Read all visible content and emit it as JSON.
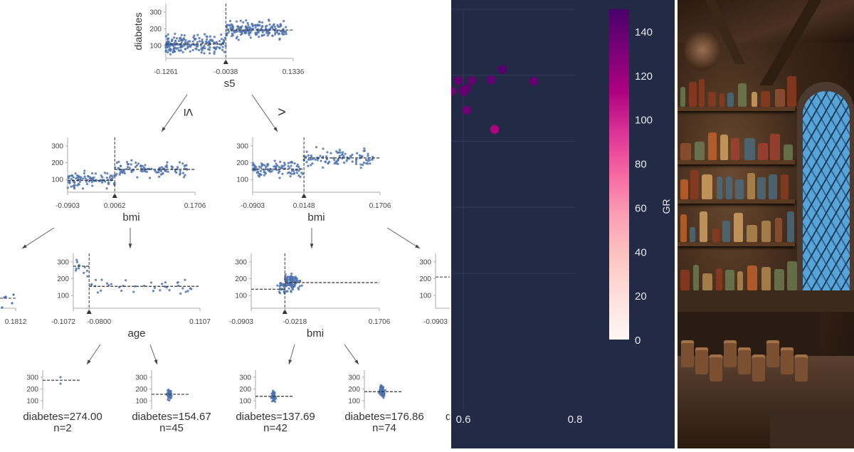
{
  "chart_data": [
    {
      "type": "scatter",
      "subtype": "decision-tree-regression",
      "ylabel": "diabetes",
      "ylim": [
        25,
        350
      ],
      "yticks": [
        "100",
        "200",
        "300"
      ],
      "point_color": "#4c72b0",
      "nodes": {
        "root": {
          "feature": "s5",
          "xticks": [
            "-0.1261",
            "-0.0038",
            "0.1336"
          ],
          "xlim": [
            -0.1261,
            0.1336
          ],
          "split": -0.0038,
          "left_mean": 110,
          "right_mean": 193
        },
        "l": {
          "feature": "bmi",
          "xticks": [
            "-0.0903",
            "0.0062",
            "0.1706"
          ],
          "xlim": [
            -0.0903,
            0.1706
          ],
          "split": 0.0062,
          "left_mean": 95,
          "right_mean": 160
        },
        "r": {
          "feature": "bmi",
          "xticks": [
            "-0.0903",
            "0.0148",
            "0.1706"
          ],
          "xlim": [
            -0.0903,
            0.1706
          ],
          "split": 0.0148,
          "left_mean": 162,
          "right_mean": 228
        },
        "ll": {
          "xticks": [
            "0.1812"
          ],
          "mean": 85
        },
        "lr": {
          "feature": "age",
          "xticks": [
            "-0.1072",
            "-0.0800",
            "0.1107"
          ],
          "xlim": [
            -0.1072,
            0.1107
          ],
          "split": -0.08,
          "left_mean": 274,
          "right_mean": 154.67
        },
        "rl": {
          "feature": "bmi",
          "xticks": [
            "-0.0903",
            "-0.0218",
            "0.1706"
          ],
          "xlim": [
            -0.0903,
            0.1706
          ],
          "split": -0.0218,
          "left_mean": 137.69,
          "right_mean": 176.86
        },
        "rr": {
          "xticks": [
            "-0.0903"
          ],
          "mean": 210
        }
      },
      "edge_labels": {
        "left": "≤",
        "right": ">"
      },
      "leaves": [
        {
          "label": "diabetes=274.00",
          "n_label": "n=2",
          "mean": 274.0,
          "n": 2
        },
        {
          "label": "diabetes=154.67",
          "n_label": "n=45",
          "mean": 154.67,
          "n": 45
        },
        {
          "label": "diabetes=137.69",
          "n_label": "n=42",
          "mean": 137.69,
          "n": 42
        },
        {
          "label": "diabetes=176.86",
          "n_label": "n=74",
          "mean": 176.86,
          "n": 74
        }
      ],
      "partial_leaf_label": "d"
    },
    {
      "type": "scatter",
      "theme": "plotly_dark",
      "background": "#222a45",
      "xticks": [
        "0.6",
        "0.8"
      ],
      "x_tick_values": [
        0.6,
        0.8
      ],
      "xlim": [
        0.578,
        0.8
      ],
      "grid": true,
      "colorbar": {
        "title": "GR",
        "ticks": [
          "0",
          "20",
          "40",
          "60",
          "80",
          "100",
          "120",
          "140"
        ],
        "range": [
          0,
          150
        ],
        "colorscale": [
          "#fff7f3",
          "#fde0dd",
          "#fcc5c0",
          "#fa9fb5",
          "#f768a1",
          "#dd3497",
          "#ae017e",
          "#7a0177",
          "#49006a"
        ]
      },
      "points": [
        {
          "x": 0.578,
          "y": 3.76,
          "gr": 130
        },
        {
          "x": 0.591,
          "y": 3.92,
          "gr": 140
        },
        {
          "x": 0.615,
          "y": 3.92,
          "gr": 140
        },
        {
          "x": 0.65,
          "y": 3.93,
          "gr": 140
        },
        {
          "x": 0.726,
          "y": 3.91,
          "gr": 140
        },
        {
          "x": 0.67,
          "y": 4.09,
          "gr": 145
        },
        {
          "x": 0.599,
          "y": 3.77,
          "gr": 140
        },
        {
          "x": 0.601,
          "y": 3.75,
          "gr": 140
        },
        {
          "x": 0.606,
          "y": 3.8,
          "gr": 140
        },
        {
          "x": 0.606,
          "y": 3.47,
          "gr": 135
        },
        {
          "x": 0.656,
          "y": 3.18,
          "gr": 112
        }
      ]
    }
  ]
}
